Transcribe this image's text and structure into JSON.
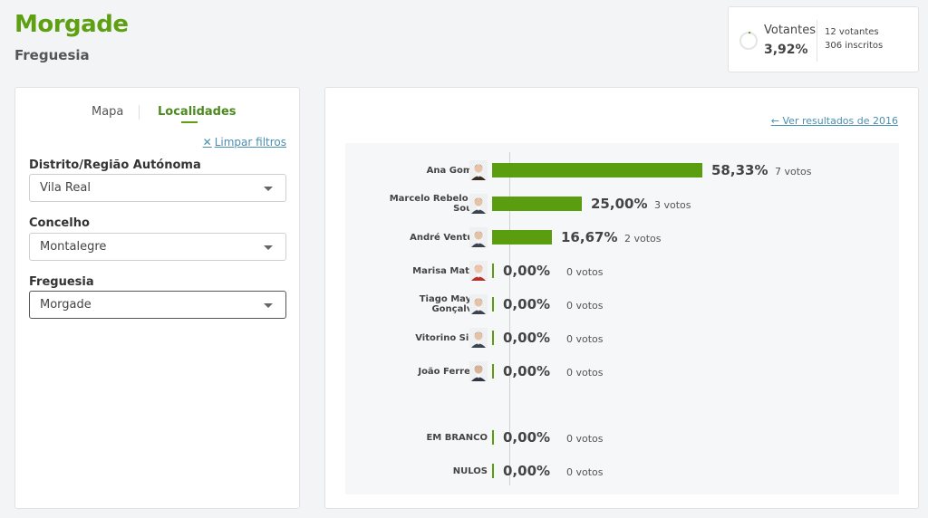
{
  "header": {
    "title": "Morgade",
    "subtitle": "Freguesia"
  },
  "votantes": {
    "label": "Votantes",
    "percent": "3,92%",
    "votantes_text": "12 votantes",
    "inscritos_text": "306 inscritos",
    "progress": 0.0392
  },
  "tabs": [
    {
      "label": "Mapa",
      "active": false
    },
    {
      "label": "Localidades",
      "active": true
    }
  ],
  "limpar": "Limpar filtros",
  "filters": [
    {
      "label": "Distrito/Região Autónoma",
      "value": "Vila Real"
    },
    {
      "label": "Concelho",
      "value": "Montalegre"
    },
    {
      "label": "Freguesia",
      "value": "Morgade"
    }
  ],
  "results_link": "Ver resultados de 2016",
  "results": [
    {
      "name": "Ana Gomes",
      "pct": "58,33%",
      "votes": "7 votos",
      "value": 58.33,
      "avatar": "woman-dark-hair"
    },
    {
      "name": "Marcelo Rebelo de Sousa",
      "pct": "25,00%",
      "votes": "3 votos",
      "value": 25.0,
      "avatar": "man-suit"
    },
    {
      "name": "André Ventura",
      "pct": "16,67%",
      "votes": "2 votos",
      "value": 16.67,
      "avatar": "man-suit"
    },
    {
      "name": "Marisa Matias",
      "pct": "0,00%",
      "votes": "0 votos",
      "value": 0,
      "avatar": "woman-red"
    },
    {
      "name": "Tiago Mayan Gonçalves",
      "pct": "0,00%",
      "votes": "0 votos",
      "value": 0,
      "avatar": "man-suit"
    },
    {
      "name": "Vitorino Silva",
      "pct": "0,00%",
      "votes": "0 votos",
      "value": 0,
      "avatar": "man-suit"
    },
    {
      "name": "João Ferreira",
      "pct": "0,00%",
      "votes": "0 votos",
      "value": 0,
      "avatar": "man-beard"
    }
  ],
  "others": [
    {
      "name": "EM BRANCO",
      "pct": "0,00%",
      "votes": "0 votos",
      "value": 0
    },
    {
      "name": "NULOS",
      "pct": "0,00%",
      "votes": "0 votos",
      "value": 0
    }
  ],
  "colors": {
    "accent": "#5fa012",
    "bar": "#5a9e10",
    "link": "#4a8fb0"
  }
}
